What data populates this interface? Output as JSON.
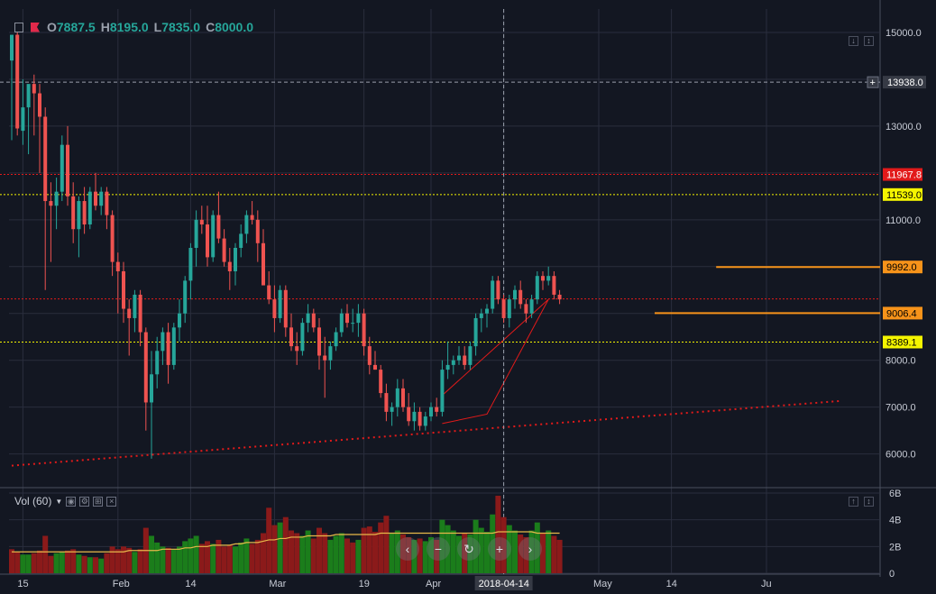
{
  "ohlc": {
    "o_label": "O",
    "o": "7887.5",
    "h_label": "H",
    "h": "8195.0",
    "l_label": "L",
    "l": "7835.0",
    "c_label": "C",
    "c": "8000.0"
  },
  "volume_label": "Vol (60)",
  "colors": {
    "background": "#131722",
    "up": "#26a69a",
    "down": "#ef5350",
    "vol_up": "#1b7d1b",
    "vol_down": "#8b1a1a",
    "ma": "#e8b84a",
    "orange": "#f7931a",
    "yellow": "#f5f500",
    "red_tag": "#e21a1a"
  },
  "crosshair": {
    "date": "2018-04-14",
    "price": "13938.0"
  },
  "chart_data": {
    "type": "candlestick",
    "price_ticks": [
      6000,
      7000,
      8000,
      9000,
      10000,
      11000,
      12000,
      13000,
      14000,
      15000
    ],
    "price_tick_labels": [
      "6000.0",
      "7000.0",
      "8000.0",
      "9000.0",
      "10000.0",
      "11000.0",
      "12000.0",
      "13000.0",
      "14000.0",
      "15000.0"
    ],
    "ylim": [
      5300,
      15500
    ],
    "volume_ticks": [
      0,
      2,
      4,
      6
    ],
    "volume_tick_labels": [
      "0",
      "2B",
      "4B",
      "6B"
    ],
    "vol_ylim": [
      0,
      6
    ],
    "x_tick_labels": [
      {
        "label": "15",
        "i": 2
      },
      {
        "label": "Feb",
        "i": 19
      },
      {
        "label": "14",
        "i": 32
      },
      {
        "label": "Mar",
        "i": 47
      },
      {
        "label": "19",
        "i": 63
      },
      {
        "label": "Apr",
        "i": 75
      },
      {
        "label": "14",
        "i": 88
      },
      {
        "label": "May",
        "i": 105
      },
      {
        "label": "14",
        "i": 118
      },
      {
        "label": "Ju",
        "i": 135
      }
    ],
    "horizontal_lines": [
      {
        "price": 11967.8,
        "label": "11967.8",
        "style": "dotted",
        "color": "#e21a1a",
        "tag_bg": "#e21a1a",
        "tag_fg": "#ffffff"
      },
      {
        "price": 11539.0,
        "label": "11539.0",
        "style": "dotted",
        "color": "#f5f500",
        "tag_bg": "#f5f500",
        "tag_fg": "#000000"
      },
      {
        "price": 9310,
        "label": "",
        "style": "dotted",
        "color": "#e21a1a"
      },
      {
        "price": 8389.1,
        "label": "8389.1",
        "style": "dotted",
        "color": "#f5f500",
        "tag_bg": "#f5f500",
        "tag_fg": "#000000"
      }
    ],
    "ray_lines": [
      {
        "price": 9992.0,
        "label": "9992.0",
        "from_i": 126,
        "color": "#f7931a"
      },
      {
        "price": 9006.4,
        "label": "9006.4",
        "from_i": 115,
        "color": "#f7931a"
      }
    ],
    "trendline": {
      "from": {
        "i": 0,
        "p": 5750
      },
      "to": {
        "i": 148,
        "p": 7130
      },
      "color": "#e21a1a"
    },
    "wedge": [
      {
        "i": 77,
        "p": 7250
      },
      {
        "i": 96,
        "p": 9300
      },
      {
        "i": 85,
        "p": 6850
      },
      {
        "i": 77,
        "p": 6650
      }
    ],
    "candles": [
      [
        14400,
        14950,
        12700,
        14950
      ],
      [
        14950,
        15000,
        12800,
        12950
      ],
      [
        12900,
        14000,
        12600,
        13400
      ],
      [
        13400,
        13800,
        12400,
        13900
      ],
      [
        13900,
        14100,
        12800,
        13700
      ],
      [
        13700,
        13900,
        12000,
        13200
      ],
      [
        13200,
        13400,
        9500,
        11400
      ],
      [
        11400,
        11800,
        10100,
        11300
      ],
      [
        11300,
        11900,
        10800,
        11600
      ],
      [
        11600,
        12800,
        11400,
        12600
      ],
      [
        12600,
        13000,
        11300,
        11500
      ],
      [
        11500,
        11800,
        10500,
        10800
      ],
      [
        10800,
        11500,
        10200,
        11400
      ],
      [
        11400,
        11700,
        10700,
        10900
      ],
      [
        10900,
        11700,
        10800,
        11600
      ],
      [
        11600,
        12000,
        11200,
        11300
      ],
      [
        11300,
        11700,
        11100,
        11600
      ],
      [
        11600,
        11700,
        10800,
        11100
      ],
      [
        11100,
        11200,
        9800,
        10100
      ],
      [
        10100,
        10300,
        9000,
        9900
      ],
      [
        9900,
        10100,
        8800,
        9100
      ],
      [
        9100,
        9300,
        8100,
        8900
      ],
      [
        8900,
        9500,
        8600,
        9400
      ],
      [
        9400,
        9500,
        8300,
        8600
      ],
      [
        8600,
        8700,
        6500,
        7100
      ],
      [
        7100,
        8200,
        5900,
        7700
      ],
      [
        7700,
        8500,
        7400,
        8200
      ],
      [
        8200,
        8700,
        7900,
        8600
      ],
      [
        8600,
        8800,
        7500,
        7900
      ],
      [
        7900,
        8800,
        7800,
        8700
      ],
      [
        8700,
        9300,
        8400,
        9000
      ],
      [
        9000,
        9800,
        8800,
        9700
      ],
      [
        9700,
        10500,
        9300,
        10400
      ],
      [
        10400,
        11200,
        10000,
        11000
      ],
      [
        11000,
        11300,
        10700,
        10900
      ],
      [
        10900,
        11300,
        10000,
        10200
      ],
      [
        10200,
        11200,
        10100,
        11100
      ],
      [
        11100,
        11600,
        10500,
        10600
      ],
      [
        10600,
        10800,
        10000,
        10100
      ],
      [
        10100,
        10400,
        9500,
        9900
      ],
      [
        9900,
        10500,
        9600,
        10400
      ],
      [
        10400,
        10900,
        10200,
        10700
      ],
      [
        10700,
        11200,
        10500,
        11100
      ],
      [
        11100,
        11400,
        10900,
        11000
      ],
      [
        11000,
        11200,
        10100,
        10500
      ],
      [
        10500,
        10800,
        9700,
        9600
      ],
      [
        9600,
        9900,
        9200,
        9300
      ],
      [
        9300,
        9600,
        8600,
        8900
      ],
      [
        8900,
        9600,
        8800,
        9500
      ],
      [
        9500,
        9600,
        8500,
        8700
      ],
      [
        8700,
        9000,
        8200,
        8300
      ],
      [
        8300,
        8600,
        7900,
        8200
      ],
      [
        8200,
        8900,
        8100,
        8800
      ],
      [
        8800,
        9200,
        8600,
        9000
      ],
      [
        9000,
        9100,
        8600,
        8700
      ],
      [
        8700,
        8900,
        7800,
        8100
      ],
      [
        8100,
        8500,
        7200,
        8000
      ],
      [
        8000,
        8400,
        7800,
        8300
      ],
      [
        8300,
        8700,
        8200,
        8600
      ],
      [
        8600,
        9100,
        8500,
        9000
      ],
      [
        9000,
        9200,
        8700,
        8800
      ],
      [
        8800,
        9100,
        8600,
        8800
      ],
      [
        8800,
        9200,
        8500,
        9000
      ],
      [
        9000,
        9100,
        8100,
        8300
      ],
      [
        8300,
        8500,
        7700,
        7900
      ],
      [
        7900,
        8200,
        7800,
        7800
      ],
      [
        7800,
        7900,
        7200,
        7300
      ],
      [
        7300,
        7500,
        6700,
        6900
      ],
      [
        6900,
        7100,
        6600,
        7000
      ],
      [
        7000,
        7600,
        6800,
        7400
      ],
      [
        7400,
        7600,
        6900,
        7000
      ],
      [
        7000,
        7300,
        6600,
        6700
      ],
      [
        6700,
        7100,
        6500,
        6900
      ],
      [
        6900,
        7000,
        6500,
        6600
      ],
      [
        6600,
        6900,
        6500,
        6800
      ],
      [
        6800,
        7100,
        6700,
        7000
      ],
      [
        7000,
        7200,
        6800,
        6900
      ],
      [
        6900,
        8000,
        6800,
        7800
      ],
      [
        7800,
        8400,
        7600,
        7900
      ],
      [
        7900,
        8100,
        7700,
        8000
      ],
      [
        8000,
        8300,
        7900,
        8100
      ],
      [
        8100,
        8300,
        7800,
        7900
      ],
      [
        7900,
        8400,
        7800,
        8300
      ],
      [
        8300,
        9000,
        8100,
        8900
      ],
      [
        8900,
        9100,
        8600,
        9000
      ],
      [
        9000,
        9200,
        8700,
        9100
      ],
      [
        9100,
        9800,
        9000,
        9700
      ],
      [
        9700,
        9800,
        9200,
        9300
      ],
      [
        9300,
        9400,
        8800,
        8900
      ],
      [
        8900,
        9400,
        8700,
        9300
      ],
      [
        9300,
        9600,
        9100,
        9500
      ],
      [
        9500,
        9700,
        9100,
        9200
      ],
      [
        9200,
        9300,
        8800,
        9000
      ],
      [
        9000,
        9400,
        8900,
        9300
      ],
      [
        9300,
        9900,
        9200,
        9800
      ],
      [
        9800,
        9900,
        9500,
        9700
      ],
      [
        9700,
        10000,
        9600,
        9800
      ],
      [
        9800,
        9900,
        9300,
        9400
      ],
      [
        9400,
        9500,
        9200,
        9300
      ]
    ],
    "volumes": [
      [
        1.8,
        0
      ],
      [
        1.6,
        0
      ],
      [
        1.4,
        1
      ],
      [
        1.4,
        1
      ],
      [
        1.5,
        0
      ],
      [
        1.7,
        0
      ],
      [
        2.8,
        0
      ],
      [
        1.3,
        0
      ],
      [
        1.5,
        1
      ],
      [
        1.6,
        1
      ],
      [
        1.7,
        0
      ],
      [
        1.8,
        0
      ],
      [
        1.4,
        1
      ],
      [
        1.3,
        0
      ],
      [
        1.2,
        1
      ],
      [
        1.2,
        0
      ],
      [
        1.1,
        1
      ],
      [
        1.5,
        0
      ],
      [
        2.0,
        0
      ],
      [
        1.8,
        0
      ],
      [
        2.0,
        0
      ],
      [
        1.9,
        0
      ],
      [
        1.6,
        1
      ],
      [
        1.8,
        0
      ],
      [
        3.4,
        0
      ],
      [
        2.8,
        1
      ],
      [
        2.3,
        1
      ],
      [
        2.0,
        1
      ],
      [
        1.9,
        0
      ],
      [
        1.8,
        1
      ],
      [
        2.0,
        1
      ],
      [
        2.4,
        1
      ],
      [
        2.6,
        1
      ],
      [
        2.8,
        1
      ],
      [
        2.2,
        0
      ],
      [
        2.4,
        0
      ],
      [
        2.2,
        1
      ],
      [
        2.5,
        0
      ],
      [
        2.0,
        0
      ],
      [
        2.1,
        0
      ],
      [
        2.0,
        1
      ],
      [
        2.3,
        1
      ],
      [
        2.6,
        1
      ],
      [
        2.2,
        0
      ],
      [
        2.5,
        0
      ],
      [
        3.0,
        0
      ],
      [
        4.9,
        0
      ],
      [
        3.6,
        0
      ],
      [
        3.8,
        1
      ],
      [
        4.2,
        0
      ],
      [
        3.2,
        0
      ],
      [
        3.0,
        0
      ],
      [
        2.8,
        1
      ],
      [
        3.2,
        1
      ],
      [
        2.6,
        0
      ],
      [
        3.4,
        0
      ],
      [
        3.0,
        0
      ],
      [
        2.5,
        1
      ],
      [
        2.8,
        1
      ],
      [
        3.0,
        1
      ],
      [
        2.6,
        0
      ],
      [
        2.3,
        0
      ],
      [
        2.5,
        1
      ],
      [
        3.4,
        0
      ],
      [
        3.5,
        0
      ],
      [
        3.1,
        0
      ],
      [
        3.8,
        0
      ],
      [
        4.3,
        0
      ],
      [
        3.0,
        1
      ],
      [
        3.2,
        1
      ],
      [
        2.9,
        0
      ],
      [
        2.7,
        0
      ],
      [
        2.5,
        1
      ],
      [
        2.6,
        0
      ],
      [
        2.4,
        1
      ],
      [
        2.7,
        1
      ],
      [
        2.5,
        0
      ],
      [
        4.0,
        1
      ],
      [
        3.6,
        1
      ],
      [
        3.2,
        1
      ],
      [
        2.8,
        1
      ],
      [
        3.0,
        0
      ],
      [
        2.9,
        1
      ],
      [
        4.0,
        1
      ],
      [
        3.4,
        1
      ],
      [
        3.1,
        1
      ],
      [
        4.4,
        1
      ],
      [
        5.8,
        0
      ],
      [
        4.2,
        0
      ],
      [
        3.6,
        1
      ],
      [
        3.2,
        1
      ],
      [
        2.9,
        0
      ],
      [
        2.7,
        0
      ],
      [
        3.2,
        1
      ],
      [
        3.8,
        1
      ],
      [
        3.0,
        0
      ],
      [
        3.2,
        1
      ],
      [
        2.8,
        0
      ],
      [
        2.5,
        0
      ]
    ],
    "ma_volume": [
      1.6,
      1.6,
      1.6,
      1.6,
      1.6,
      1.6,
      1.6,
      1.6,
      1.6,
      1.6,
      1.6,
      1.6,
      1.6,
      1.6,
      1.6,
      1.6,
      1.6,
      1.6,
      1.6,
      1.6,
      1.6,
      1.7,
      1.7,
      1.7,
      1.7,
      1.7,
      1.7,
      1.8,
      1.8,
      1.8,
      1.8,
      1.9,
      1.9,
      2.0,
      2.0,
      2.0,
      2.1,
      2.1,
      2.1,
      2.1,
      2.2,
      2.2,
      2.3,
      2.3,
      2.3,
      2.4,
      2.5,
      2.5,
      2.6,
      2.6,
      2.7,
      2.7,
      2.7,
      2.8,
      2.8,
      2.8,
      2.8,
      2.8,
      2.9,
      2.9,
      2.9,
      2.9,
      2.9,
      2.9,
      2.9,
      2.9,
      3.0,
      3.0,
      3.0,
      3.0,
      3.0,
      3.0,
      3.0,
      3.0,
      3.0,
      3.0,
      3.0,
      3.0,
      3.0,
      3.0,
      3.0,
      3.0,
      3.0,
      3.0,
      3.0,
      3.0,
      3.0,
      3.1,
      3.1,
      3.1,
      3.1,
      3.1,
      3.1,
      3.1,
      3.0,
      3.0,
      3.0,
      3.0,
      3.0
    ]
  }
}
